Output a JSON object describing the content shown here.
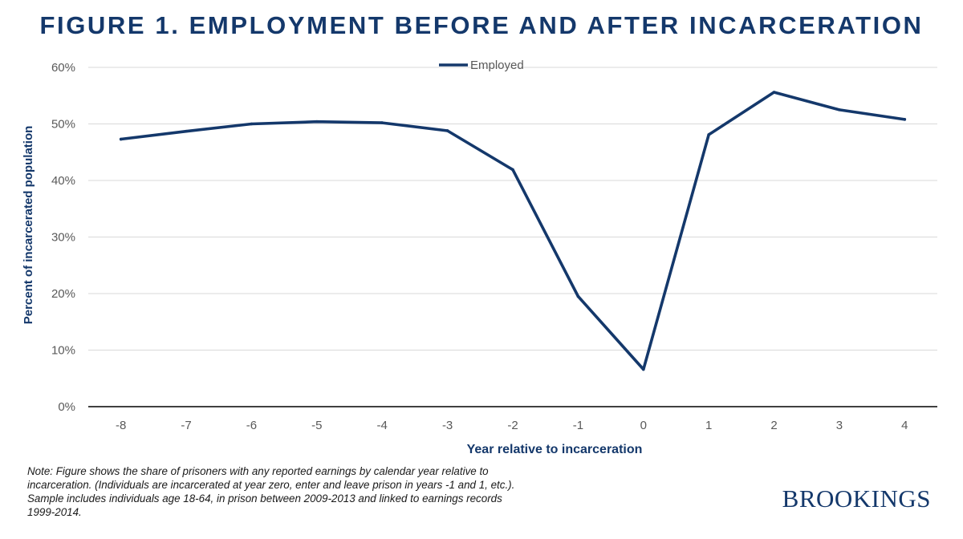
{
  "title": "FIGURE 1. EMPLOYMENT BEFORE AND AFTER INCARCERATION",
  "chart_data": {
    "type": "line",
    "title": "FIGURE 1. EMPLOYMENT BEFORE AND AFTER INCARCERATION",
    "xlabel": "Year relative to incarceration",
    "ylabel": "Percent of incarcerated population",
    "x": [
      -8,
      -7,
      -6,
      -5,
      -4,
      -3,
      -2,
      -1,
      0,
      1,
      2,
      3,
      4
    ],
    "x_tick_labels": [
      "-8",
      "-7",
      "-6",
      "-5",
      "-4",
      "-3",
      "-2",
      "-1",
      "0",
      "1",
      "2",
      "3",
      "4"
    ],
    "y_ticks": [
      0,
      10,
      20,
      30,
      40,
      50,
      60
    ],
    "y_tick_labels": [
      "0%",
      "10%",
      "20%",
      "30%",
      "40%",
      "50%",
      "60%"
    ],
    "ylim": [
      0,
      60
    ],
    "grid": true,
    "legend_position": "top-center",
    "series": [
      {
        "name": "Employed",
        "color": "#14386b",
        "values": [
          47.3,
          48.7,
          50.0,
          50.4,
          50.2,
          48.8,
          41.9,
          19.5,
          6.6,
          48.1,
          55.6,
          52.5,
          50.8
        ]
      }
    ]
  },
  "note": [
    "Note: Figure shows the share of prisoners with any reported earnings by calendar year relative to",
    "incarceration. (Individuals are incarcerated at year zero, enter and leave prison in years -1 and 1, etc.).",
    "Sample includes individuals age 18-64, in prison between 2009-2013 and linked to earnings records",
    "1999-2014."
  ],
  "brand": "BROOKINGS"
}
